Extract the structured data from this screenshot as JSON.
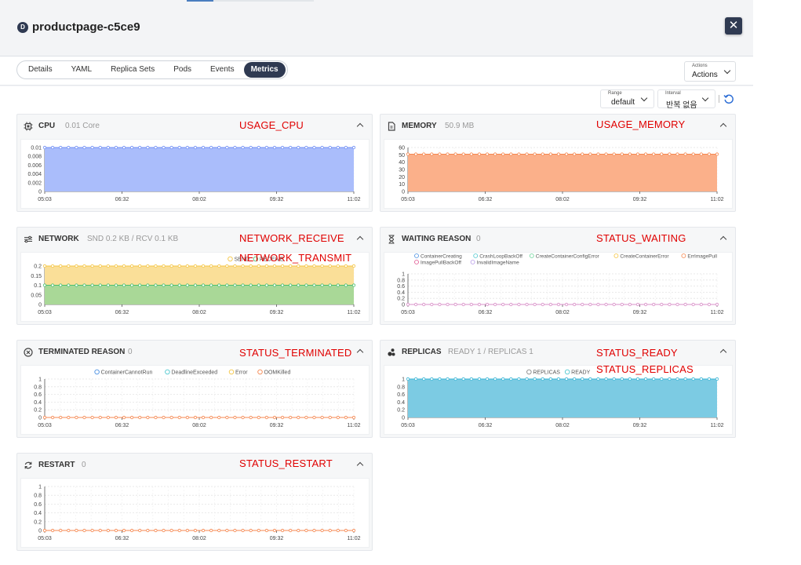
{
  "header": {
    "badge": "D",
    "title": "productpage-c5ce9"
  },
  "tabs": [
    "Details",
    "YAML",
    "Replica Sets",
    "Pods",
    "Events",
    "Metrics"
  ],
  "active_tab": "Metrics",
  "actions": {
    "label": "Actions",
    "value": "Actions"
  },
  "controls": {
    "range_label": "Range",
    "range_value": "default",
    "interval_label": "Interval",
    "interval_value": "반복 없음"
  },
  "annotations": {
    "cpu": "USAGE_CPU",
    "memory": "USAGE_MEMORY",
    "network_receive": "NETWORK_RECEIVE",
    "network_transmit": "NETWORK_TRANSMIT",
    "waiting": "STATUS_WAITING",
    "terminated": "STATUS_TERMINATED",
    "ready": "STATUS_READY",
    "replicas": "STATUS_REPLICAS",
    "restart": "STATUS_RESTART"
  },
  "colors": {
    "accent": "#2f3a52",
    "annotation": "#e00000"
  },
  "panels": {
    "cpu": {
      "title": "CPU",
      "value": "0.01 Core",
      "icon": "cpu-icon"
    },
    "memory": {
      "title": "MEMORY",
      "value": "50.9 MB",
      "icon": "memory-icon"
    },
    "network": {
      "title": "NETWORK",
      "value": "SND 0.2 KB / RCV 0.1 KB",
      "icon": "network-icon"
    },
    "waiting": {
      "title": "WAITING REASON",
      "value": "0",
      "icon": "hourglass-icon"
    },
    "terminated": {
      "title": "TERMINATED REASON",
      "value": "0",
      "icon": "close-circle-icon"
    },
    "replicas": {
      "title": "REPLICAS",
      "value": "READY 1 / REPLICAS 1",
      "icon": "replicas-icon"
    },
    "restart": {
      "title": "RESTART",
      "value": "0",
      "icon": "restart-icon"
    }
  },
  "chart_data": [
    {
      "id": "cpu",
      "type": "area",
      "x_ticks": [
        "05:03",
        "06:32",
        "08:02",
        "09:32",
        "11:02"
      ],
      "y_ticks": [
        "0.01",
        "0.008",
        "0.006",
        "0.004",
        "0.002",
        "0"
      ],
      "ylim": [
        0,
        0.01
      ],
      "series": [
        {
          "values": [
            0.01,
            0.01,
            0.01,
            0.01,
            0.01,
            0.01,
            0.01,
            0.01,
            0.01,
            0.01,
            0.01,
            0.01,
            0.01,
            0.01,
            0.01,
            0.01,
            0.01,
            0.01,
            0.01,
            0.01,
            0.01,
            0.01,
            0.01,
            0.01,
            0.01,
            0.01,
            0.01,
            0.01,
            0.01,
            0.01,
            0.01,
            0.01,
            0.01,
            0.01,
            0.01,
            0.01,
            0.01,
            0.01,
            0.01,
            0.01
          ],
          "color": "#6f8ef5",
          "fill": "#aabdfb"
        }
      ]
    },
    {
      "id": "memory",
      "type": "area",
      "x_ticks": [
        "05:03",
        "06:32",
        "08:02",
        "09:32",
        "11:02"
      ],
      "y_ticks": [
        "60",
        "50",
        "40",
        "30",
        "20",
        "10",
        "0"
      ],
      "ylim": [
        0,
        60
      ],
      "series": [
        {
          "values": [
            50.9,
            50.9,
            50.9,
            50.9,
            50.9,
            50.9,
            50.9,
            50.9,
            50.9,
            50.9,
            50.9,
            50.9,
            50.9,
            50.9,
            50.9,
            50.9,
            50.9,
            50.9,
            50.9,
            50.9,
            50.9,
            50.9,
            50.9,
            50.9,
            50.9,
            50.9,
            50.9,
            50.9,
            50.9,
            50.9,
            50.9,
            50.9,
            50.9,
            50.9,
            50.9,
            50.9,
            50.9,
            50.9,
            50.9,
            50.9
          ],
          "color": "#f5874f",
          "fill": "#fbb08a"
        }
      ]
    },
    {
      "id": "network",
      "type": "area",
      "x_ticks": [
        "05:03",
        "06:32",
        "08:02",
        "09:32",
        "11:02"
      ],
      "y_ticks": [
        "0.2",
        "0.15",
        "0.1",
        "0.05",
        "0"
      ],
      "ylim": [
        0,
        0.2
      ],
      "legend": [
        "SEND",
        "RECEIVE"
      ],
      "legend_colors": [
        "#f4c542",
        "#4cc070"
      ],
      "series": [
        {
          "name": "SEND",
          "values": [
            0.2,
            0.2,
            0.2,
            0.2,
            0.2,
            0.2,
            0.2,
            0.2,
            0.2,
            0.2,
            0.2,
            0.2,
            0.2,
            0.2,
            0.2,
            0.2,
            0.2,
            0.2,
            0.2,
            0.2,
            0.2,
            0.2,
            0.2,
            0.2,
            0.2,
            0.2,
            0.2,
            0.2,
            0.2,
            0.2,
            0.2,
            0.2,
            0.2,
            0.2,
            0.2,
            0.2,
            0.2,
            0.2,
            0.2,
            0.2
          ],
          "color": "#f4c542",
          "fill": "#fadf98"
        },
        {
          "name": "RECEIVE",
          "values": [
            0.1,
            0.1,
            0.1,
            0.1,
            0.1,
            0.1,
            0.1,
            0.1,
            0.1,
            0.1,
            0.1,
            0.1,
            0.1,
            0.1,
            0.1,
            0.1,
            0.1,
            0.1,
            0.1,
            0.1,
            0.1,
            0.1,
            0.1,
            0.1,
            0.1,
            0.1,
            0.1,
            0.1,
            0.1,
            0.1,
            0.1,
            0.1,
            0.1,
            0.1,
            0.1,
            0.1,
            0.1,
            0.1,
            0.1,
            0.1
          ],
          "color": "#4cc070",
          "fill": "#a9d897"
        }
      ]
    },
    {
      "id": "waiting",
      "type": "line",
      "x_ticks": [
        "05:03",
        "06:32",
        "08:02",
        "09:32",
        "11:02"
      ],
      "y_ticks": [
        "1",
        "0.8",
        "0.6",
        "0.4",
        "0.2",
        "0"
      ],
      "ylim": [
        0,
        1
      ],
      "legend": [
        "ContainerCreating",
        "CrashLoopBackOff",
        "CreateContainerConfigError",
        "CreateContainerError",
        "ErrImagePull",
        "ImagePullBackOff",
        "InvalidImageName"
      ],
      "legend_colors": [
        "#4a90e2",
        "#50c8d0",
        "#6cd49a",
        "#f4c542",
        "#f5874f",
        "#e05590",
        "#b79be8"
      ],
      "series": [
        {
          "values": [
            0,
            0,
            0,
            0,
            0,
            0,
            0,
            0,
            0,
            0,
            0,
            0,
            0,
            0,
            0,
            0,
            0,
            0,
            0,
            0,
            0,
            0,
            0,
            0,
            0,
            0,
            0,
            0,
            0,
            0,
            0,
            0,
            0,
            0,
            0,
            0,
            0,
            0,
            0,
            0
          ],
          "color": "#d98fc8",
          "fill": "none"
        }
      ]
    },
    {
      "id": "terminated",
      "type": "line",
      "x_ticks": [
        "05:03",
        "06:32",
        "08:02",
        "09:32",
        "11:02"
      ],
      "y_ticks": [
        "1",
        "0.8",
        "0.6",
        "0.4",
        "0.2",
        "0"
      ],
      "ylim": [
        0,
        1
      ],
      "legend": [
        "ContainerCannotRun",
        "DeadlineExceeded",
        "Error",
        "OOMKilled"
      ],
      "legend_colors": [
        "#4a90e2",
        "#50c8d0",
        "#f4c542",
        "#f5874f"
      ],
      "series": [
        {
          "values": [
            0,
            0,
            0,
            0,
            0,
            0,
            0,
            0,
            0,
            0,
            0,
            0,
            0,
            0,
            0,
            0,
            0,
            0,
            0,
            0,
            0,
            0,
            0,
            0,
            0,
            0,
            0,
            0,
            0,
            0,
            0,
            0,
            0,
            0,
            0,
            0,
            0,
            0,
            0,
            0
          ],
          "color": "#f5874f",
          "fill": "none"
        }
      ]
    },
    {
      "id": "replicas",
      "type": "area",
      "x_ticks": [
        "05:03",
        "06:32",
        "08:02",
        "09:32",
        "11:02"
      ],
      "y_ticks": [
        "1",
        "0.8",
        "0.6",
        "0.4",
        "0.2",
        "0"
      ],
      "ylim": [
        0,
        1
      ],
      "legend": [
        "REPLICAS",
        "READY"
      ],
      "legend_colors": [
        "#888888",
        "#50c8d0"
      ],
      "series": [
        {
          "values": [
            1,
            1,
            1,
            1,
            1,
            1,
            1,
            1,
            1,
            1,
            1,
            1,
            1,
            1,
            1,
            1,
            1,
            1,
            1,
            1,
            1,
            1,
            1,
            1,
            1,
            1,
            1,
            1,
            1,
            1,
            1,
            1,
            1,
            1,
            1,
            1,
            1,
            1,
            1,
            1
          ],
          "color": "#3ab5d5",
          "fill": "#7ccbe3"
        }
      ]
    },
    {
      "id": "restart",
      "type": "line",
      "x_ticks": [
        "05:03",
        "06:32",
        "08:02",
        "09:32",
        "11:02"
      ],
      "y_ticks": [
        "1",
        "0.8",
        "0.6",
        "0.4",
        "0.2",
        "0"
      ],
      "ylim": [
        0,
        1
      ],
      "series": [
        {
          "values": [
            0,
            0,
            0,
            0,
            0,
            0,
            0,
            0,
            0,
            0,
            0,
            0,
            0,
            0,
            0,
            0,
            0,
            0,
            0,
            0,
            0,
            0,
            0,
            0,
            0,
            0,
            0,
            0,
            0,
            0,
            0,
            0,
            0,
            0,
            0,
            0,
            0,
            0,
            0,
            0
          ],
          "color": "#f5874f",
          "fill": "none"
        }
      ]
    }
  ]
}
